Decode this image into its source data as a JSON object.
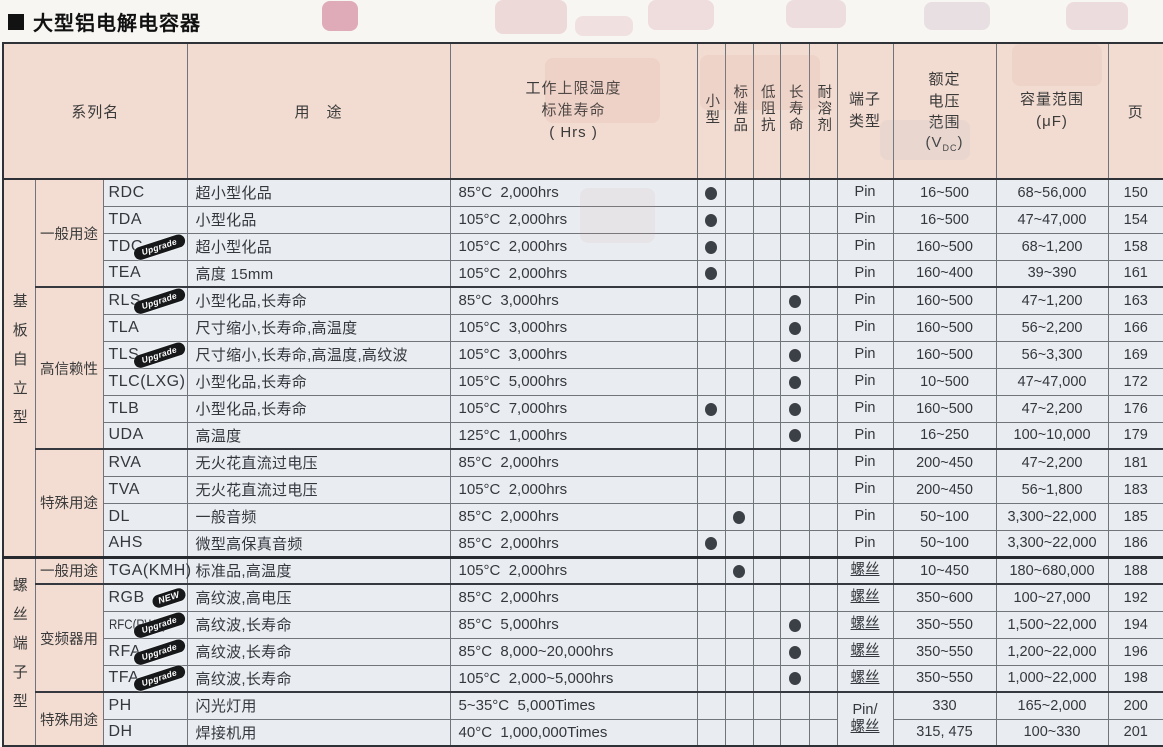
{
  "title": "大型铝电解电容器",
  "header": {
    "series": "系列名",
    "application": "用　途",
    "temp_life": "工作上限温度\n标准寿命\n( Hrs )",
    "flags": [
      "小型",
      "标准品",
      "低阻抗",
      "长寿命",
      "耐溶剂"
    ],
    "terminal": "端子\n类型",
    "voltage": "额定\n电压\n范围",
    "voltage_unit_prefix": "(V",
    "voltage_unit_sub": "DC",
    "voltage_unit_suffix": ")",
    "capacity": "容量范围\n(μF)",
    "page": "页"
  },
  "sections": [
    {
      "name": "基板自立型",
      "groups": [
        {
          "name": "一般用途",
          "rows": [
            {
              "code": "RDC",
              "badge": null,
              "application": "超小型化品",
              "temp_life": "85°C  2,000hrs",
              "flags": [
                "small"
              ],
              "terminal": {
                "rowspan": 1,
                "lines": [
                  {
                    "text": "Pin",
                    "underline": false
                  }
                ]
              },
              "voltage": "16~500",
              "capacity": "68~56,000",
              "page": "150"
            },
            {
              "code": "TDA",
              "badge": null,
              "application": "小型化品",
              "temp_life": "105°C  2,000hrs",
              "flags": [
                "small"
              ],
              "terminal": {
                "rowspan": 1,
                "lines": [
                  {
                    "text": "Pin",
                    "underline": false
                  }
                ]
              },
              "voltage": "16~500",
              "capacity": "47~47,000",
              "page": "154"
            },
            {
              "code": "TDC",
              "badge": "Upgrade",
              "application": "超小型化品",
              "temp_life": "105°C  2,000hrs",
              "flags": [
                "small"
              ],
              "terminal": {
                "rowspan": 1,
                "lines": [
                  {
                    "text": "Pin",
                    "underline": false
                  }
                ]
              },
              "voltage": "160~500",
              "capacity": "68~1,200",
              "page": "158"
            },
            {
              "code": "TEA",
              "badge": null,
              "application": "高度 15mm",
              "temp_life": "105°C  2,000hrs",
              "flags": [
                "small"
              ],
              "terminal": {
                "rowspan": 1,
                "lines": [
                  {
                    "text": "Pin",
                    "underline": false
                  }
                ]
              },
              "voltage": "160~400",
              "capacity": "39~390",
              "page": "161"
            }
          ]
        },
        {
          "name": "高信赖性",
          "rows": [
            {
              "code": "RLS",
              "badge": "Upgrade",
              "application": "小型化品,长寿命",
              "temp_life": "85°C  3,000hrs",
              "flags": [
                "long_life"
              ],
              "terminal": {
                "rowspan": 1,
                "lines": [
                  {
                    "text": "Pin",
                    "underline": false
                  }
                ]
              },
              "voltage": "160~500",
              "capacity": "47~1,200",
              "page": "163"
            },
            {
              "code": "TLA",
              "badge": null,
              "application": "尺寸缩小,长寿命,高温度",
              "temp_life": "105°C  3,000hrs",
              "flags": [
                "long_life"
              ],
              "terminal": {
                "rowspan": 1,
                "lines": [
                  {
                    "text": "Pin",
                    "underline": false
                  }
                ]
              },
              "voltage": "160~500",
              "capacity": "56~2,200",
              "page": "166"
            },
            {
              "code": "TLS",
              "badge": "Upgrade",
              "application": "尺寸缩小,长寿命,高温度,高纹波",
              "temp_life": "105°C  3,000hrs",
              "flags": [
                "long_life"
              ],
              "terminal": {
                "rowspan": 1,
                "lines": [
                  {
                    "text": "Pin",
                    "underline": false
                  }
                ]
              },
              "voltage": "160~500",
              "capacity": "56~3,300",
              "page": "169"
            },
            {
              "code": "TLC(LXG)",
              "badge": null,
              "application": "小型化品,长寿命",
              "temp_life": "105°C  5,000hrs",
              "flags": [
                "long_life"
              ],
              "terminal": {
                "rowspan": 1,
                "lines": [
                  {
                    "text": "Pin",
                    "underline": false
                  }
                ]
              },
              "voltage": "10~500",
              "capacity": "47~47,000",
              "page": "172"
            },
            {
              "code": "TLB",
              "badge": null,
              "application": "小型化品,长寿命",
              "temp_life": "105°C  7,000hrs",
              "flags": [
                "small",
                "long_life"
              ],
              "terminal": {
                "rowspan": 1,
                "lines": [
                  {
                    "text": "Pin",
                    "underline": false
                  }
                ]
              },
              "voltage": "160~500",
              "capacity": "47~2,200",
              "page": "176"
            },
            {
              "code": "UDA",
              "badge": null,
              "application": "高温度",
              "temp_life": "125°C  1,000hrs",
              "flags": [
                "long_life"
              ],
              "terminal": {
                "rowspan": 1,
                "lines": [
                  {
                    "text": "Pin",
                    "underline": false
                  }
                ]
              },
              "voltage": "16~250",
              "capacity": "100~10,000",
              "page": "179"
            }
          ]
        },
        {
          "name": "特殊用途",
          "rows": [
            {
              "code": "RVA",
              "badge": null,
              "application": "无火花直流过电压",
              "temp_life": "85°C  2,000hrs",
              "flags": [],
              "terminal": {
                "rowspan": 1,
                "lines": [
                  {
                    "text": "Pin",
                    "underline": false
                  }
                ]
              },
              "voltage": "200~450",
              "capacity": "47~2,200",
              "page": "181"
            },
            {
              "code": "TVA",
              "badge": null,
              "application": "无火花直流过电压",
              "temp_life": "105°C  2,000hrs",
              "flags": [],
              "terminal": {
                "rowspan": 1,
                "lines": [
                  {
                    "text": "Pin",
                    "underline": false
                  }
                ]
              },
              "voltage": "200~450",
              "capacity": "56~1,800",
              "page": "183"
            },
            {
              "code": "DL",
              "badge": null,
              "application": "一般音频",
              "temp_life": "85°C  2,000hrs",
              "flags": [
                "standard"
              ],
              "terminal": {
                "rowspan": 1,
                "lines": [
                  {
                    "text": "Pin",
                    "underline": false
                  }
                ]
              },
              "voltage": "50~100",
              "capacity": "3,300~22,000",
              "page": "185"
            },
            {
              "code": "AHS",
              "badge": null,
              "application": "微型高保真音频",
              "temp_life": "85°C  2,000hrs",
              "flags": [
                "small"
              ],
              "terminal": {
                "rowspan": 1,
                "lines": [
                  {
                    "text": "Pin",
                    "underline": false
                  }
                ]
              },
              "voltage": "50~100",
              "capacity": "3,300~22,000",
              "page": "186"
            }
          ]
        }
      ]
    },
    {
      "name": "螺丝端子型",
      "groups": [
        {
          "name": "一般用途",
          "rows": [
            {
              "code": "TGA(KMH)",
              "badge": null,
              "application": "标准品,高温度",
              "temp_life": "105°C  2,000hrs",
              "flags": [
                "standard"
              ],
              "terminal": {
                "rowspan": 1,
                "lines": [
                  {
                    "text": "螺丝",
                    "underline": true
                  }
                ]
              },
              "voltage": "10~450",
              "capacity": "180~680,000",
              "page": "188"
            }
          ]
        },
        {
          "name": "变频器用",
          "rows": [
            {
              "code": "RGB",
              "badge": "NEW",
              "application": "高纹波,高电压",
              "temp_life": "85°C  2,000hrs",
              "flags": [],
              "terminal": {
                "rowspan": 1,
                "lines": [
                  {
                    "text": "螺丝",
                    "underline": true
                  }
                ]
              },
              "voltage": "350~600",
              "capacity": "100~27,000",
              "page": "192"
            },
            {
              "code": "RFC(RWF)",
              "code_small": true,
              "badge": "Upgrade",
              "application": "高纹波,长寿命",
              "temp_life": "85°C  5,000hrs",
              "flags": [
                "long_life"
              ],
              "terminal": {
                "rowspan": 1,
                "lines": [
                  {
                    "text": "螺丝",
                    "underline": true
                  }
                ]
              },
              "voltage": "350~550",
              "capacity": "1,500~22,000",
              "page": "194"
            },
            {
              "code": "RFA",
              "badge": "Upgrade",
              "application": "高纹波,长寿命",
              "temp_life": "85°C  8,000~20,000hrs",
              "flags": [
                "long_life"
              ],
              "terminal": {
                "rowspan": 1,
                "lines": [
                  {
                    "text": "螺丝",
                    "underline": true
                  }
                ]
              },
              "voltage": "350~550",
              "capacity": "1,200~22,000",
              "page": "196"
            },
            {
              "code": "TFA",
              "badge": "Upgrade",
              "application": "高纹波,长寿命",
              "temp_life": "105°C  2,000~5,000hrs",
              "flags": [
                "long_life"
              ],
              "terminal": {
                "rowspan": 1,
                "lines": [
                  {
                    "text": "螺丝",
                    "underline": true
                  }
                ]
              },
              "voltage": "350~550",
              "capacity": "1,000~22,000",
              "page": "198"
            }
          ]
        },
        {
          "name": "特殊用途",
          "rows": [
            {
              "code": "PH",
              "badge": null,
              "application": "闪光灯用",
              "temp_life": "5~35°C  5,000Times",
              "flags": [],
              "terminal": {
                "rowspan": 2,
                "lines": [
                  {
                    "text": "Pin/",
                    "underline": false
                  },
                  {
                    "text": "螺丝",
                    "underline": true
                  }
                ]
              },
              "voltage": "330",
              "capacity": "165~2,000",
              "page": "200"
            },
            {
              "code": "DH",
              "badge": null,
              "application": "焊接机用",
              "temp_life": "40°C  1,000,000Times",
              "flags": [],
              "terminal": null,
              "voltage": "315, 475",
              "capacity": "100~330",
              "page": "201"
            }
          ]
        }
      ]
    }
  ]
}
